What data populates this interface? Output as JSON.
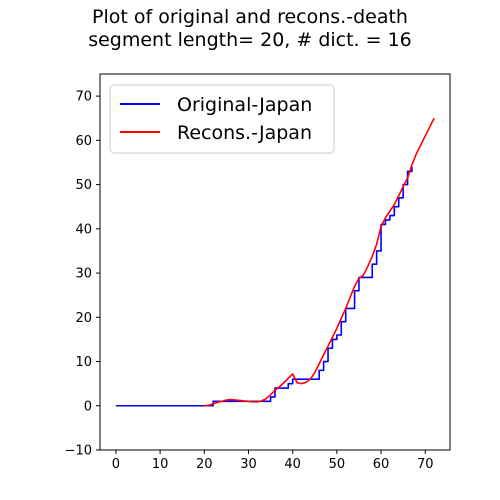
{
  "chart_data": {
    "type": "line",
    "title_line1": "Plot of original and recons.-death",
    "title_line2": "segment length= 20, # dict. = 16",
    "xlabel": "",
    "ylabel": "",
    "xlim": [
      -3.6,
      75.6
    ],
    "ylim": [
      -10,
      75
    ],
    "x_ticks": [
      0,
      10,
      20,
      30,
      40,
      50,
      60,
      70
    ],
    "y_ticks": [
      -10,
      0,
      10,
      20,
      30,
      40,
      50,
      60,
      70
    ],
    "grid": false,
    "legend_position": "top-left",
    "series": [
      {
        "name": "Original-Japan",
        "color": "#0000ff",
        "step": true,
        "x": [
          0,
          1,
          2,
          3,
          4,
          5,
          6,
          7,
          8,
          9,
          10,
          11,
          12,
          13,
          14,
          15,
          16,
          17,
          18,
          19,
          20,
          21,
          22,
          23,
          24,
          25,
          26,
          27,
          28,
          29,
          30,
          31,
          32,
          33,
          34,
          35,
          36,
          37,
          38,
          39,
          40,
          41,
          42,
          43,
          44,
          45,
          46,
          47,
          48,
          49,
          50,
          51,
          52,
          53,
          54,
          55,
          56,
          57,
          58,
          59,
          60,
          61,
          62,
          63,
          64,
          65,
          66,
          67
        ],
        "y": [
          0,
          0,
          0,
          0,
          0,
          0,
          0,
          0,
          0,
          0,
          0,
          0,
          0,
          0,
          0,
          0,
          0,
          0,
          0,
          0,
          0,
          0,
          1,
          1,
          1,
          1,
          1,
          1,
          1,
          1,
          1,
          1,
          1,
          1,
          1,
          2,
          4,
          4,
          4,
          5,
          6,
          6,
          6,
          6,
          6,
          6,
          8,
          10,
          13,
          15,
          16,
          19,
          22,
          22,
          26,
          29,
          29,
          29,
          32,
          35,
          41,
          42,
          43,
          45,
          47,
          50,
          53,
          54
        ]
      },
      {
        "name": "Recons.-Japan",
        "color": "#ff0000",
        "step": false,
        "x": [
          20,
          21,
          22,
          23,
          24,
          25,
          26,
          27,
          28,
          29,
          30,
          31,
          32,
          33,
          34,
          35,
          36,
          37,
          38,
          39,
          40,
          41,
          42,
          43,
          44,
          45,
          46,
          47,
          48,
          49,
          50,
          51,
          52,
          53,
          54,
          55,
          56,
          57,
          58,
          59,
          60,
          61,
          62,
          63,
          64,
          65,
          66,
          67,
          68,
          69,
          70,
          71,
          72
        ],
        "y": [
          0.0,
          0.1,
          0.4,
          0.8,
          1.0,
          1.3,
          1.4,
          1.3,
          1.2,
          1.1,
          1.0,
          0.9,
          0.9,
          1.1,
          1.6,
          2.5,
          3.5,
          4.3,
          5.2,
          6.2,
          7.2,
          5.2,
          5.0,
          5.3,
          6.0,
          7.5,
          9.5,
          11.5,
          13.5,
          15.5,
          17.5,
          19.8,
          22.0,
          24.5,
          27.0,
          28.8,
          29.5,
          31.5,
          33.8,
          36.5,
          40.5,
          42.5,
          44.0,
          45.5,
          47.5,
          49.5,
          51.5,
          54.5,
          57.0,
          59.0,
          61.0,
          63.0,
          65.0
        ]
      }
    ]
  }
}
